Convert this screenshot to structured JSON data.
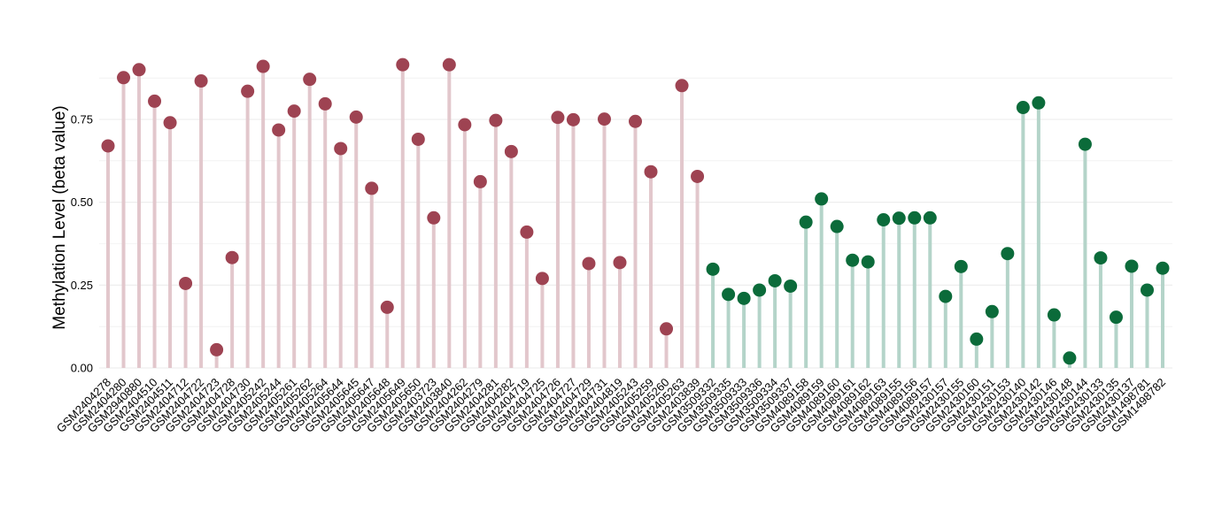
{
  "chart_data": {
    "type": "lollipop",
    "ylabel": "Methylation Level (beta value)",
    "xlabel": "",
    "title": "",
    "ylim": [
      0,
      0.98
    ],
    "yticks": [
      0.0,
      0.25,
      0.5,
      0.75
    ],
    "ytick_labels": [
      "0.00",
      "0.25",
      "0.50",
      "0.75"
    ],
    "grid": true,
    "legend": "none",
    "colors": {
      "group1_point": "#9E4352",
      "group1_stem": "#E2C7CC",
      "group2_point": "#0B6B3A",
      "group2_stem": "#B4D4C9",
      "grid": "#EBEBEB"
    },
    "points": [
      {
        "label": "GSM2404278",
        "value": 0.67,
        "group": 1
      },
      {
        "label": "GSM2404280",
        "value": 0.876,
        "group": 1
      },
      {
        "label": "GSM2940880",
        "value": 0.9,
        "group": 1
      },
      {
        "label": "GSM2404510",
        "value": 0.805,
        "group": 1
      },
      {
        "label": "GSM2404511",
        "value": 0.74,
        "group": 1
      },
      {
        "label": "GSM2404712",
        "value": 0.255,
        "group": 1
      },
      {
        "label": "GSM2404722",
        "value": 0.866,
        "group": 1
      },
      {
        "label": "GSM2404723",
        "value": 0.055,
        "group": 1
      },
      {
        "label": "GSM2404728",
        "value": 0.333,
        "group": 1
      },
      {
        "label": "GSM2404730",
        "value": 0.835,
        "group": 1
      },
      {
        "label": "GSM2405242",
        "value": 0.91,
        "group": 1
      },
      {
        "label": "GSM2405244",
        "value": 0.718,
        "group": 1
      },
      {
        "label": "GSM2405261",
        "value": 0.775,
        "group": 1
      },
      {
        "label": "GSM2405262",
        "value": 0.871,
        "group": 1
      },
      {
        "label": "GSM2405264",
        "value": 0.797,
        "group": 1
      },
      {
        "label": "GSM2405644",
        "value": 0.662,
        "group": 1
      },
      {
        "label": "GSM2405645",
        "value": 0.757,
        "group": 1
      },
      {
        "label": "GSM2405647",
        "value": 0.542,
        "group": 1
      },
      {
        "label": "GSM2405648",
        "value": 0.183,
        "group": 1
      },
      {
        "label": "GSM2405649",
        "value": 0.915,
        "group": 1
      },
      {
        "label": "GSM2405650",
        "value": 0.69,
        "group": 1
      },
      {
        "label": "GSM2403723",
        "value": 0.453,
        "group": 1
      },
      {
        "label": "GSM2403840",
        "value": 0.915,
        "group": 1
      },
      {
        "label": "GSM2404262",
        "value": 0.734,
        "group": 1
      },
      {
        "label": "GSM2404279",
        "value": 0.562,
        "group": 1
      },
      {
        "label": "GSM2404281",
        "value": 0.747,
        "group": 1
      },
      {
        "label": "GSM2404282",
        "value": 0.653,
        "group": 1
      },
      {
        "label": "GSM2404719",
        "value": 0.41,
        "group": 1
      },
      {
        "label": "GSM2404725",
        "value": 0.27,
        "group": 1
      },
      {
        "label": "GSM2404726",
        "value": 0.756,
        "group": 1
      },
      {
        "label": "GSM2404727",
        "value": 0.749,
        "group": 1
      },
      {
        "label": "GSM2404729",
        "value": 0.315,
        "group": 1
      },
      {
        "label": "GSM2404731",
        "value": 0.751,
        "group": 1
      },
      {
        "label": "GSM2404819",
        "value": 0.318,
        "group": 1
      },
      {
        "label": "GSM2405243",
        "value": 0.744,
        "group": 1
      },
      {
        "label": "GSM2405259",
        "value": 0.592,
        "group": 1
      },
      {
        "label": "GSM2405260",
        "value": 0.118,
        "group": 1
      },
      {
        "label": "GSM2405263",
        "value": 0.852,
        "group": 1
      },
      {
        "label": "GSM2403839",
        "value": 0.578,
        "group": 1
      },
      {
        "label": "GSM3509332",
        "value": 0.298,
        "group": 2
      },
      {
        "label": "GSM3509335",
        "value": 0.222,
        "group": 2
      },
      {
        "label": "GSM3509333",
        "value": 0.21,
        "group": 2
      },
      {
        "label": "GSM3509336",
        "value": 0.235,
        "group": 2
      },
      {
        "label": "GSM3509334",
        "value": 0.263,
        "group": 2
      },
      {
        "label": "GSM3509337",
        "value": 0.247,
        "group": 2
      },
      {
        "label": "GSM4089158",
        "value": 0.44,
        "group": 2
      },
      {
        "label": "GSM4089159",
        "value": 0.51,
        "group": 2
      },
      {
        "label": "GSM4089160",
        "value": 0.427,
        "group": 2
      },
      {
        "label": "GSM4089161",
        "value": 0.325,
        "group": 2
      },
      {
        "label": "GSM4089162",
        "value": 0.32,
        "group": 2
      },
      {
        "label": "GSM4089163",
        "value": 0.447,
        "group": 2
      },
      {
        "label": "GSM4089155",
        "value": 0.452,
        "group": 2
      },
      {
        "label": "GSM4089156",
        "value": 0.453,
        "group": 2
      },
      {
        "label": "GSM4089157",
        "value": 0.453,
        "group": 2
      },
      {
        "label": "GSM2430157",
        "value": 0.216,
        "group": 2
      },
      {
        "label": "GSM2430155",
        "value": 0.306,
        "group": 2
      },
      {
        "label": "GSM2430160",
        "value": 0.087,
        "group": 2
      },
      {
        "label": "GSM2430151",
        "value": 0.17,
        "group": 2
      },
      {
        "label": "GSM2430153",
        "value": 0.345,
        "group": 2
      },
      {
        "label": "GSM2430140",
        "value": 0.786,
        "group": 2
      },
      {
        "label": "GSM2430142",
        "value": 0.8,
        "group": 2
      },
      {
        "label": "GSM2430146",
        "value": 0.16,
        "group": 2
      },
      {
        "label": "GSM2430148",
        "value": 0.03,
        "group": 2
      },
      {
        "label": "GSM2430144",
        "value": 0.675,
        "group": 2
      },
      {
        "label": "GSM2430133",
        "value": 0.332,
        "group": 2
      },
      {
        "label": "GSM2430135",
        "value": 0.153,
        "group": 2
      },
      {
        "label": "GSM2430137",
        "value": 0.307,
        "group": 2
      },
      {
        "label": "GSM1498781",
        "value": 0.235,
        "group": 2
      },
      {
        "label": "GSM1498782",
        "value": 0.301,
        "group": 2
      }
    ]
  }
}
